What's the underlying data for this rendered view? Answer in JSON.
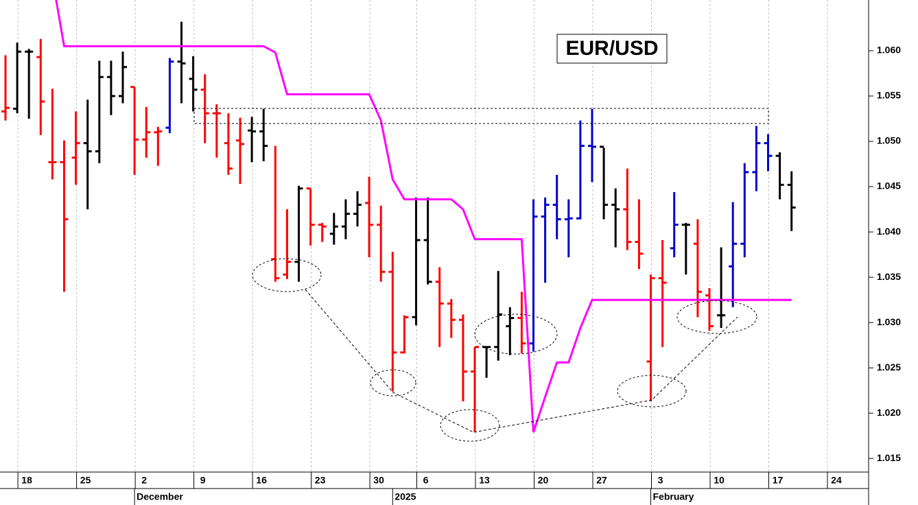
{
  "chart_data": {
    "type": "ohlc",
    "title": "EUR/USD",
    "categories": [
      null,
      "18",
      null,
      null,
      null,
      null,
      "25",
      null,
      null,
      null,
      null,
      "2",
      null,
      null,
      null,
      null,
      "9",
      null,
      null,
      null,
      null,
      "16",
      null,
      null,
      null,
      null,
      "23",
      null,
      null,
      null,
      null,
      "30",
      null,
      null,
      null,
      "6",
      null,
      null,
      null,
      null,
      "13",
      null,
      null,
      null,
      null,
      "20",
      null,
      null,
      null,
      null,
      "27",
      null,
      null,
      null,
      null,
      "3",
      null,
      null,
      null,
      null,
      "10",
      null,
      null,
      null,
      null,
      "17",
      null,
      null,
      null,
      null,
      "24",
      null,
      null
    ],
    "month_labels": [
      null,
      null,
      null,
      null,
      null,
      null,
      null,
      null,
      null,
      null,
      null,
      "December",
      null,
      null,
      null,
      null,
      null,
      null,
      null,
      null,
      null,
      null,
      null,
      null,
      null,
      null,
      null,
      null,
      null,
      null,
      null,
      null,
      null,
      "2025",
      null,
      null,
      null,
      null,
      null,
      null,
      null,
      null,
      null,
      null,
      null,
      null,
      null,
      null,
      null,
      null,
      null,
      null,
      null,
      null,
      null,
      "February",
      null,
      null,
      null,
      null,
      null,
      null,
      null,
      null,
      null,
      null,
      null,
      null,
      null,
      null,
      null,
      null,
      null
    ],
    "ohlc": {
      "open": [
        1.0533,
        1.0536,
        1.0599,
        1.0593,
        1.0477,
        1.0477,
        1.0482,
        1.0498,
        1.0489,
        1.0571,
        1.055,
        1.056,
        1.0502,
        1.051,
        1.0515,
        1.0588,
        1.0569,
        1.0557,
        1.0531,
        1.0498,
        1.0501,
        1.0512,
        1.0511,
        1.037,
        1.0353,
        1.0367,
        1.0448,
        1.0408,
        1.0398,
        1.0406,
        1.042,
        1.0432,
        1.0408,
        1.0356,
        1.0267,
        1.0306,
        1.0391,
        1.0345,
        1.0321,
        1.0303,
        1.0246,
        1.0273,
        1.0273,
        1.0296,
        1.0305,
        1.0277,
        1.0417,
        1.043,
        1.0414,
        1.0415,
        1.0495,
        1.0494,
        1.043,
        1.0425,
        1.0389,
        1.0257,
        1.0349,
        1.0382,
        1.0408,
        1.0387,
        1.033,
        1.0308,
        1.0362,
        1.0387,
        1.0466,
        1.0498,
        1.0484,
        1.0452,
        null,
        null,
        null,
        null,
        null
      ],
      "high": [
        1.0595,
        1.0609,
        1.0602,
        1.0613,
        1.0558,
        1.0501,
        1.0533,
        1.0546,
        1.0589,
        1.0589,
        1.0599,
        1.056,
        1.0538,
        1.0516,
        1.0592,
        1.0632,
        1.0594,
        1.0574,
        1.0541,
        1.0531,
        1.0526,
        1.0527,
        1.0536,
        1.0495,
        1.0425,
        1.0451,
        1.0448,
        1.041,
        1.0421,
        1.0436,
        1.0445,
        1.0461,
        1.0429,
        1.0378,
        1.0308,
        1.0438,
        1.0438,
        1.0361,
        1.0326,
        1.0309,
        1.0273,
        1.0273,
        1.0357,
        1.0317,
        1.0334,
        1.0436,
        1.0438,
        1.0463,
        1.0436,
        1.0523,
        1.0536,
        1.0493,
        1.0448,
        1.047,
        1.0436,
        1.0353,
        1.0391,
        1.0444,
        1.041,
        1.0414,
        1.0338,
        1.0383,
        1.0433,
        1.0476,
        1.0517,
        1.0508,
        1.0488,
        1.0467,
        null,
        null,
        null,
        null,
        null
      ],
      "low": [
        1.0523,
        1.0531,
        1.0525,
        1.0507,
        1.0458,
        1.0334,
        1.0452,
        1.0425,
        1.0476,
        1.0529,
        1.0542,
        1.0463,
        1.0482,
        1.0473,
        1.0509,
        1.0542,
        1.0533,
        1.0498,
        1.0482,
        1.0463,
        1.0453,
        1.0477,
        1.0478,
        1.0345,
        1.0348,
        1.0345,
        1.0385,
        1.0389,
        1.0386,
        1.0392,
        1.0406,
        1.0372,
        1.0345,
        1.0224,
        1.0266,
        1.0297,
        1.0342,
        1.0273,
        1.0283,
        1.0213,
        1.0179,
        1.0239,
        1.0258,
        1.0264,
        1.0266,
        1.0268,
        1.0344,
        1.0392,
        1.0372,
        1.0414,
        1.0455,
        1.0414,
        1.0383,
        1.038,
        1.0359,
        1.0213,
        1.0273,
        1.0372,
        1.0353,
        1.0306,
        1.0291,
        1.0294,
        1.0317,
        1.0372,
        1.0445,
        1.0467,
        1.0436,
        1.0401,
        null,
        null,
        null,
        null,
        null
      ],
      "close": [
        1.0537,
        1.0599,
        1.0599,
        1.0544,
        1.0477,
        1.0414,
        1.0498,
        1.0489,
        1.0571,
        1.055,
        1.0582,
        1.0502,
        1.051,
        1.0511,
        1.0588,
        1.0586,
        1.0557,
        1.0531,
        1.0531,
        1.047,
        1.0497,
        1.0511,
        1.0495,
        1.0349,
        1.0367,
        1.0448,
        1.0408,
        1.0406,
        1.0406,
        1.042,
        1.043,
        1.0408,
        1.0356,
        1.0267,
        1.0306,
        1.0391,
        1.0345,
        1.0321,
        1.0303,
        1.0246,
        1.0273,
        1.0273,
        1.0309,
        1.0305,
        1.0277,
        1.0417,
        1.043,
        1.0414,
        1.0415,
        1.0495,
        1.0494,
        1.043,
        1.0425,
        1.0389,
        1.0376,
        1.0349,
        1.0344,
        1.0408,
        1.0408,
        1.0334,
        1.0296,
        1.0308,
        1.0387,
        1.0466,
        1.0498,
        1.0484,
        1.0452,
        1.0427,
        null,
        null,
        null,
        null,
        null
      ],
      "colors": [
        "#ff0000",
        "#000000",
        "#000000",
        "#ff0000",
        "#ff0000",
        "#ff0000",
        "#ff0000",
        "#000000",
        "#000000",
        "#000000",
        "#000000",
        "#ff0000",
        "#ff0000",
        "#ff0000",
        "#0000cc",
        "#000000",
        "#000000",
        "#ff0000",
        "#ff0000",
        "#ff0000",
        "#ff0000",
        "#000000",
        "#000000",
        "#ff0000",
        "#ff0000",
        "#000000",
        "#ff0000",
        "#ff0000",
        "#000000",
        "#000000",
        "#000000",
        "#ff0000",
        "#ff0000",
        "#ff0000",
        "#ff0000",
        "#000000",
        "#000000",
        "#ff0000",
        "#ff0000",
        "#ff0000",
        "#ff0000",
        "#000000",
        "#000000",
        "#000000",
        "#ff0000",
        "#0000cc",
        "#0000cc",
        "#0000cc",
        "#0000cc",
        "#0000cc",
        "#0000cc",
        "#000000",
        "#000000",
        "#ff0000",
        "#ff0000",
        "#ff0000",
        "#ff0000",
        "#0000cc",
        "#000000",
        "#ff0000",
        "#ff0000",
        "#000000",
        "#0000cc",
        "#0000cc",
        "#0000cc",
        "#0000cc",
        "#000000",
        "#000000",
        null,
        null,
        null,
        null,
        null
      ]
    },
    "line": {
      "color": "#ff00ff",
      "values": [
        null,
        null,
        null,
        null,
        1.068,
        1.0605,
        1.0605,
        1.0605,
        1.0605,
        1.0605,
        1.0605,
        1.0605,
        1.0605,
        1.0605,
        1.0605,
        1.0605,
        1.0605,
        1.0605,
        1.0605,
        1.0605,
        1.0605,
        1.0605,
        1.0605,
        1.0598,
        1.0552,
        1.0552,
        1.0552,
        1.0552,
        1.0552,
        1.0552,
        1.0552,
        1.0552,
        1.0523,
        1.0458,
        1.0436,
        1.0436,
        1.0436,
        1.0436,
        1.0436,
        1.0425,
        1.0392,
        1.0392,
        1.0392,
        1.0392,
        1.0392,
        1.0179,
        1.0218,
        1.0256,
        1.0256,
        1.0294,
        1.0325,
        1.0325,
        1.0325,
        1.0325,
        1.0325,
        1.0325,
        1.0325,
        1.0325,
        1.0325,
        1.0325,
        1.0325,
        1.0325,
        1.0325,
        1.0325,
        1.0325,
        1.0325,
        1.0325,
        1.0325,
        null,
        null,
        null,
        null,
        null
      ]
    },
    "ylim": [
      1.0135,
      1.0656
    ],
    "yticks": [
      1.015,
      {
        "value": 1.02,
        "label": "1.020"
      },
      1.025,
      {
        "value": 1.03,
        "label": "1.030"
      },
      1.035,
      {
        "value": 1.04,
        "label": "1.040"
      },
      1.045,
      {
        "value": 1.05,
        "label": "1.050"
      },
      1.055,
      {
        "value": 1.06,
        "label": "1.060"
      }
    ],
    "grid": true
  }
}
